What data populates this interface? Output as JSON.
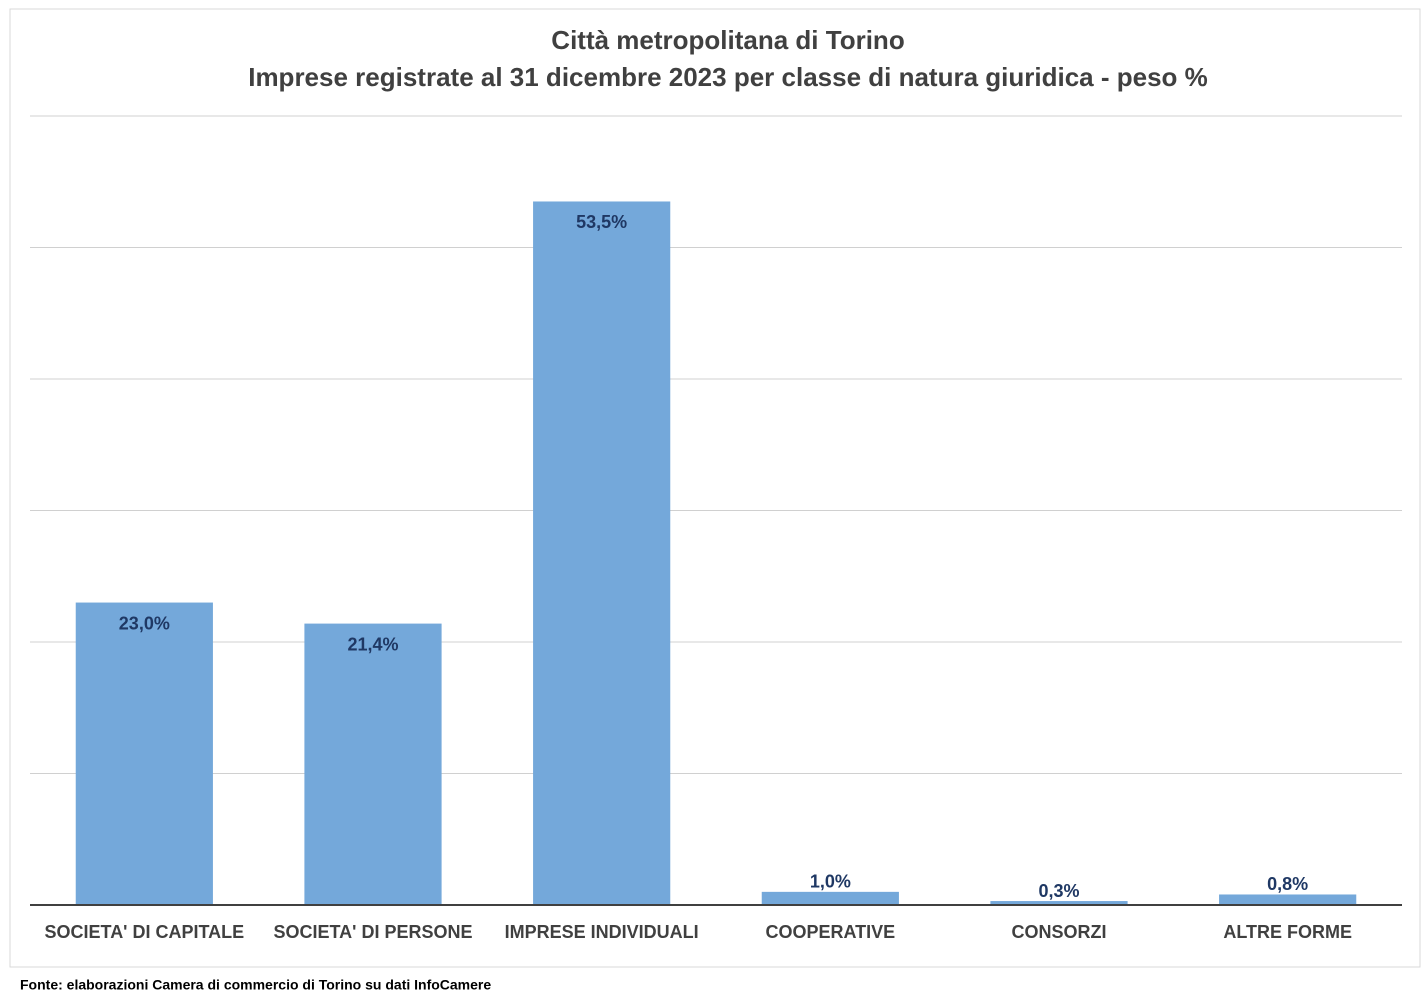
{
  "chart_data": {
    "type": "bar",
    "title": "Città metropolitana di Torino",
    "subtitle": "Imprese registrate al 31 dicembre 2023  per classe di natura giuridica - peso %",
    "categories": [
      "SOCIETA' DI CAPITALE",
      "SOCIETA' DI PERSONE",
      "IMPRESE INDIVIDUALI",
      "COOPERATIVE",
      "CONSORZI",
      "ALTRE FORME"
    ],
    "values": [
      23.0,
      21.4,
      53.5,
      1.0,
      0.3,
      0.8
    ],
    "value_labels": [
      "23,0%",
      "21,4%",
      "53,5%",
      "1,0%",
      "0,3%",
      "0,8%"
    ],
    "color": "#74a8da",
    "ylim": [
      0,
      60
    ],
    "yticks": [
      0,
      10,
      20,
      30,
      40,
      50,
      60
    ],
    "grid": true,
    "source": "Fonte: elaborazioni Camera di commercio di Torino su dati InfoCamere"
  }
}
